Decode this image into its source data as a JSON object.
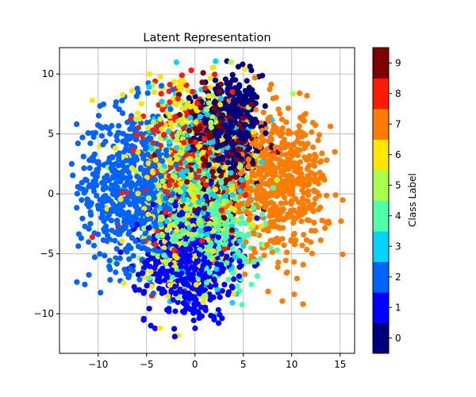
{
  "chart_data": {
    "type": "scatter",
    "title": "Latent Representation",
    "xlabel": "",
    "ylabel": "",
    "xlim": [
      -14,
      16.5
    ],
    "ylim": [
      -13.3,
      12.2
    ],
    "xticks": [
      -10,
      -5,
      0,
      5,
      10,
      15
    ],
    "yticks": [
      -10,
      -5,
      0,
      5,
      10
    ],
    "grid": true,
    "colorbar": {
      "label": "Class Label",
      "range": [
        -0.5,
        9.5
      ],
      "ticks": [
        0,
        1,
        2,
        3,
        4,
        5,
        6,
        7,
        8,
        9
      ],
      "colors": [
        "#00007f",
        "#0000ff",
        "#0063ff",
        "#00d4ff",
        "#4dffaa",
        "#aaff4d",
        "#ffe600",
        "#ff7c00",
        "#ff1a00",
        "#7f0000"
      ]
    },
    "clusters": [
      {
        "label": 0,
        "center": [
          3.5,
          5.5
        ],
        "spread": [
          1.6,
          2.2
        ],
        "approx_count": 450
      },
      {
        "label": 1,
        "center": [
          -0.5,
          -5.5
        ],
        "spread": [
          2.3,
          2.6
        ],
        "approx_count": 550
      },
      {
        "label": 2,
        "center": [
          -6.5,
          0.5
        ],
        "spread": [
          2.8,
          3.3
        ],
        "approx_count": 650
      },
      {
        "label": 3,
        "center": [
          0.5,
          1.5
        ],
        "spread": [
          2.6,
          4.0
        ],
        "approx_count": 300
      },
      {
        "label": 4,
        "center": [
          2.0,
          -2.5
        ],
        "spread": [
          2.5,
          2.6
        ],
        "approx_count": 300
      },
      {
        "label": 5,
        "center": [
          0.0,
          0.5
        ],
        "spread": [
          2.8,
          3.6
        ],
        "approx_count": 300
      },
      {
        "label": 6,
        "center": [
          -1.0,
          0.5
        ],
        "spread": [
          3.2,
          4.4
        ],
        "approx_count": 450
      },
      {
        "label": 7,
        "center": [
          8.5,
          1.0
        ],
        "spread": [
          2.6,
          2.9
        ],
        "approx_count": 600
      },
      {
        "label": 8,
        "center": [
          -0.5,
          2.0
        ],
        "spread": [
          2.8,
          3.8
        ],
        "approx_count": 260
      },
      {
        "label": 9,
        "center": [
          2.0,
          2.5
        ],
        "spread": [
          2.0,
          2.8
        ],
        "approx_count": 320
      }
    ]
  }
}
